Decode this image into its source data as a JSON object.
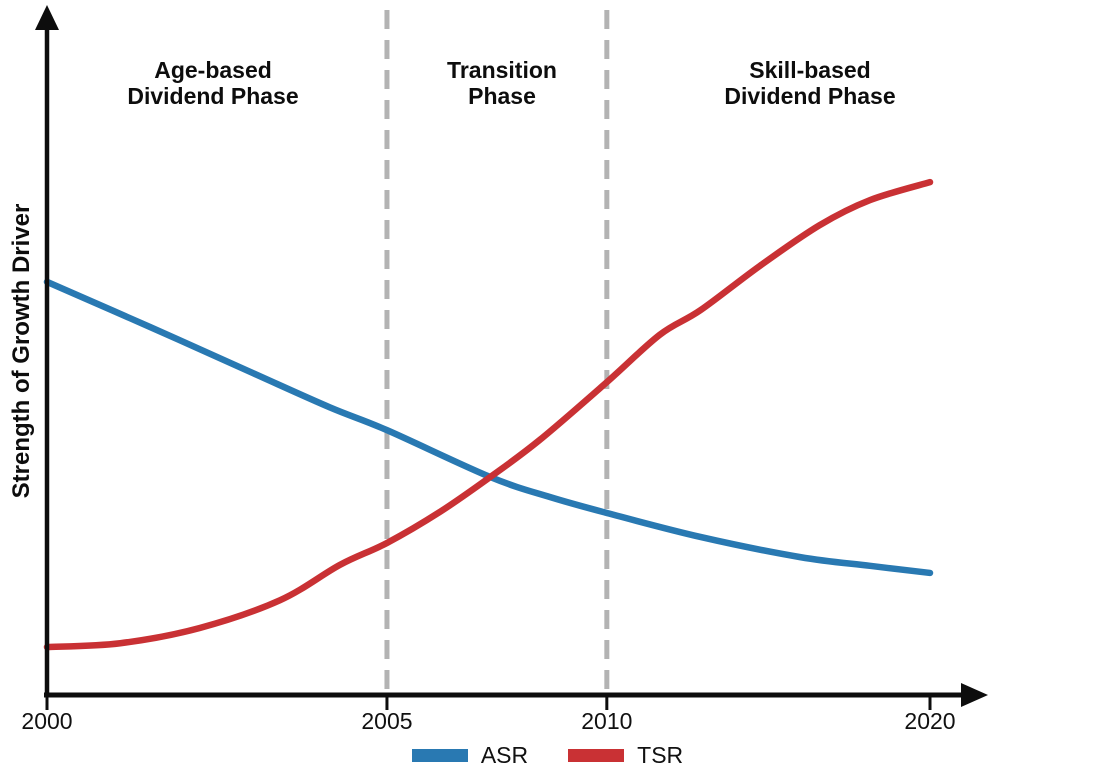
{
  "chart_data": {
    "type": "line",
    "title": "",
    "xlabel": "",
    "ylabel": "Strength of Growth Driver",
    "ylim": [
      0,
      100
    ],
    "grid": "off",
    "legend_position": "bottom-center",
    "axis_style": "arrow-ends, no y ticks, x ticks not linearly spaced",
    "x_ticks": [
      {
        "label": "2000",
        "t": 0.0
      },
      {
        "label": "2005",
        "t": 0.385
      },
      {
        "label": "2010",
        "t": 0.634
      },
      {
        "label": "2020",
        "t": 1.0
      }
    ],
    "phase_dividers_t": [
      0.385,
      0.634
    ],
    "phases": [
      {
        "line1": "Age-based",
        "line2": "Dividend Phase"
      },
      {
        "line1": "Transition",
        "line2": "Phase"
      },
      {
        "line1": "Skill-based",
        "line2": "Dividend Phase"
      }
    ],
    "divider_color": "#b3b3b3",
    "axis_color": "#0d0d0d",
    "series": [
      {
        "name": "ASR",
        "color": "#2979B2",
        "points": [
          {
            "t": 0.0,
            "value": 75.8
          },
          {
            "t": 0.117,
            "value": 67.5
          },
          {
            "t": 0.23,
            "value": 59.3
          },
          {
            "t": 0.32,
            "value": 52.8
          },
          {
            "t": 0.385,
            "value": 48.6
          },
          {
            "t": 0.502,
            "value": 40.0
          },
          {
            "t": 0.57,
            "value": 36.3
          },
          {
            "t": 0.634,
            "value": 33.4
          },
          {
            "t": 0.74,
            "value": 29.0
          },
          {
            "t": 0.853,
            "value": 25.3
          },
          {
            "t": 0.932,
            "value": 23.7
          },
          {
            "t": 1.0,
            "value": 22.4
          }
        ]
      },
      {
        "name": "TSR",
        "color": "#C93134",
        "points": [
          {
            "t": 0.0,
            "value": 8.8
          },
          {
            "t": 0.083,
            "value": 9.5
          },
          {
            "t": 0.173,
            "value": 12.3
          },
          {
            "t": 0.264,
            "value": 17.4
          },
          {
            "t": 0.332,
            "value": 23.9
          },
          {
            "t": 0.385,
            "value": 27.9
          },
          {
            "t": 0.445,
            "value": 33.6
          },
          {
            "t": 0.502,
            "value": 40.0
          },
          {
            "t": 0.558,
            "value": 46.8
          },
          {
            "t": 0.634,
            "value": 57.4
          },
          {
            "t": 0.694,
            "value": 66.1
          },
          {
            "t": 0.74,
            "value": 70.6
          },
          {
            "t": 0.807,
            "value": 78.7
          },
          {
            "t": 0.875,
            "value": 86.2
          },
          {
            "t": 0.932,
            "value": 90.8
          },
          {
            "t": 1.0,
            "value": 94.1
          }
        ]
      }
    ]
  }
}
